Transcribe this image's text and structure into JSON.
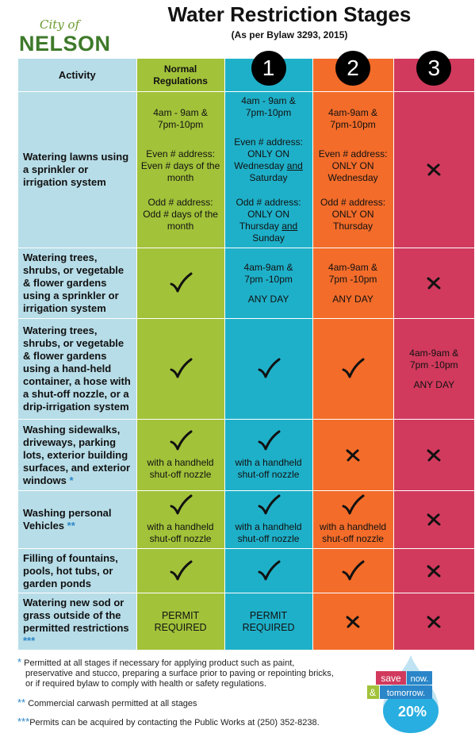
{
  "logo": {
    "city_of": "City of",
    "name": "NELSON"
  },
  "title": "Water Restriction Stages",
  "subtitle": "(As per Bylaw 3293, 2015)",
  "header": {
    "activity": "Activity",
    "normal": "Normal Regulations",
    "stage1": "1",
    "stage2": "2",
    "stage3": "3"
  },
  "rows": [
    {
      "activity": "Watering lawns using a sprinkler or irrigation system",
      "normal": {
        "time": "4am - 9am & 7pm-10pm",
        "even": "Even # address: Even # days of the month",
        "odd": "Odd # address: Odd # days of the month"
      },
      "stage1": {
        "time": "4am - 9am & 7pm-10pm",
        "even_a": "Even # address: ONLY ON Wednesday ",
        "even_and": "and",
        "even_b": " Saturday",
        "odd_a": "Odd # address: ONLY ON Thursday ",
        "odd_and": "and",
        "odd_b": " Sunday"
      },
      "stage2": {
        "time": "4am-9am & 7pm-10pm",
        "even": "Even # address: ONLY ON Wednesday",
        "odd": "Odd # address: ONLY ON Thursday"
      },
      "stage3": "not-permitted"
    },
    {
      "activity": "Watering trees, shrubs, or vegetable & flower gardens using a sprinkler or irrigation system",
      "normal": "permitted",
      "stage1": {
        "time": "4am-9am & 7pm -10pm",
        "days": "ANY DAY"
      },
      "stage2": {
        "time": "4am-9am & 7pm -10pm",
        "days": "ANY DAY"
      },
      "stage3": "not-permitted"
    },
    {
      "activity": "Watering trees, shrubs, or vegetable & flower gardens using a hand-held container, a hose with a shut-off nozzle, or a drip-irrigation system",
      "normal": "permitted",
      "stage1": "permitted",
      "stage2": "permitted",
      "stage3": {
        "time": "4am-9am & 7pm -10pm",
        "days": "ANY DAY"
      }
    },
    {
      "activity": "Washing sidewalks, driveways, parking lots, exterior building surfaces, and exterior windows",
      "activity_star": "*",
      "normal": {
        "mark": "permitted",
        "note": "with a handheld shut-off nozzle"
      },
      "stage1": {
        "mark": "permitted",
        "note": "with a handheld shut-off nozzle"
      },
      "stage2": "not-permitted",
      "stage3": "not-permitted"
    },
    {
      "activity": "Washing personal Vehicles",
      "activity_star": "**",
      "normal": {
        "mark": "permitted",
        "note": "with a handheld shut-off nozzle"
      },
      "stage1": {
        "mark": "permitted",
        "note": "with a handheld shut-off nozzle"
      },
      "stage2": {
        "mark": "permitted",
        "note": "with a handheld shut-off nozzle"
      },
      "stage3": "not-permitted"
    },
    {
      "activity": "Filling of fountains, pools, hot tubs, or garden ponds",
      "normal": "permitted",
      "stage1": "permitted",
      "stage2": "permitted",
      "stage3": "not-permitted"
    },
    {
      "activity": "Watering new sod or grass outside of the permitted restrictions",
      "activity_star": "***",
      "normal": "PERMIT REQUIRED",
      "stage1": "PERMIT REQUIRED",
      "stage2": "not-permitted",
      "stage3": "not-permitted"
    }
  ],
  "footnotes": [
    {
      "star": "*",
      "text1": "Permitted at all stages if necessary for applying product such as paint,",
      "text2": "preservative and stucco, preparing a surface prior to paving or repointing bricks,",
      "text3": "or if required bylaw to comply with health or safety regulations."
    },
    {
      "star": "**",
      "text1": "Commercial carwash permitted at all stages"
    },
    {
      "star": "***",
      "text1": "Permits can be acquired by contacting the Public Works at (250) 352-8238."
    }
  ],
  "badge": {
    "save": "save",
    "now": "now.",
    "amp": "&",
    "tomorrow": "tomorrow.",
    "percent": "20%"
  },
  "colors": {
    "activity": "#b7dde8",
    "normal": "#a2c23a",
    "stage1": "#1fb0c9",
    "stage2": "#f36c2a",
    "stage3": "#d13a5d"
  },
  "icons": {
    "permitted": "check-icon",
    "not_permitted": "x-icon"
  }
}
